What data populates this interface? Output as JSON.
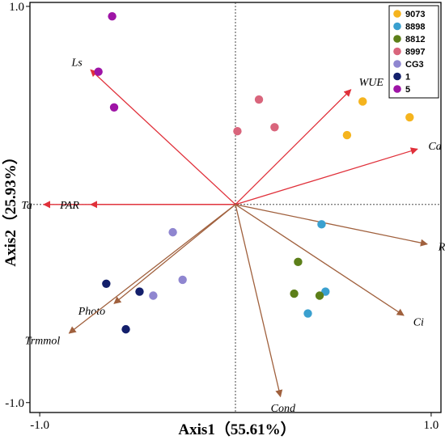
{
  "chart_data": {
    "type": "scatter",
    "subtype": "biplot",
    "xlabel": "Axis1（55.61%）",
    "ylabel": "Axis2（25.93%）",
    "xlim": [
      -1.05,
      1.05
    ],
    "ylim": [
      -1.05,
      1.02
    ],
    "x_ticks": [
      {
        "value": -1.0,
        "label": "-1.0"
      },
      {
        "value": 1.0,
        "label": "1.0"
      }
    ],
    "y_ticks": [
      {
        "value": 1.0,
        "label": "1.0"
      },
      {
        "value": -1.0,
        "label": "-1.0"
      }
    ],
    "reference_lines": "dotted lines at x=0 and y=0",
    "legend_position": "top-right",
    "series": [
      {
        "name": "9073",
        "color": "#f5b41e",
        "points": [
          [
            0.65,
            0.52
          ],
          [
            0.89,
            0.44
          ],
          [
            0.57,
            0.35
          ]
        ]
      },
      {
        "name": "8898",
        "color": "#3aa0cf",
        "points": [
          [
            0.44,
            -0.1
          ],
          [
            0.46,
            -0.44
          ],
          [
            0.37,
            -0.55
          ]
        ]
      },
      {
        "name": "8812",
        "color": "#5c7f19",
        "points": [
          [
            0.32,
            -0.29
          ],
          [
            0.3,
            -0.45
          ],
          [
            0.43,
            -0.46
          ]
        ]
      },
      {
        "name": "8997",
        "color": "#d9657c",
        "points": [
          [
            0.12,
            0.53
          ],
          [
            0.2,
            0.39
          ],
          [
            0.01,
            0.37
          ]
        ]
      },
      {
        "name": "CG3",
        "color": "#8f86d0",
        "points": [
          [
            -0.32,
            -0.14
          ],
          [
            -0.27,
            -0.38
          ],
          [
            -0.42,
            -0.46
          ]
        ]
      },
      {
        "name": "1",
        "color": "#131f6b",
        "points": [
          [
            -0.66,
            -0.4
          ],
          [
            -0.49,
            -0.44
          ],
          [
            -0.56,
            -0.63
          ]
        ]
      },
      {
        "name": "5",
        "color": "#9e14a6",
        "points": [
          [
            -0.63,
            0.95
          ],
          [
            -0.7,
            0.67
          ],
          [
            -0.62,
            0.49
          ]
        ]
      }
    ],
    "vectors": [
      {
        "name": "Ls",
        "x": -0.74,
        "y": 0.68,
        "color": "#e0303a"
      },
      {
        "name": "WUE",
        "x": 0.59,
        "y": 0.58,
        "color": "#e0303a"
      },
      {
        "name": "Ca",
        "x": 0.93,
        "y": 0.28,
        "color": "#e0303a"
      },
      {
        "name": "Ta",
        "x": -0.98,
        "y": 0.0,
        "color": "#e0303a"
      },
      {
        "name": "PAR",
        "x": -0.74,
        "y": 0.0,
        "color": "#e0303a"
      },
      {
        "name": "RH",
        "x": 0.98,
        "y": -0.2,
        "color": "#a0603d"
      },
      {
        "name": "Photo",
        "x": -0.62,
        "y": -0.5,
        "color": "#a0603d"
      },
      {
        "name": "Trmmol",
        "x": -0.85,
        "y": -0.65,
        "color": "#a0603d"
      },
      {
        "name": "Ci",
        "x": 0.86,
        "y": -0.56,
        "color": "#a0603d"
      },
      {
        "name": "Cond",
        "x": 0.23,
        "y": -0.97,
        "color": "#a0603d"
      }
    ]
  }
}
